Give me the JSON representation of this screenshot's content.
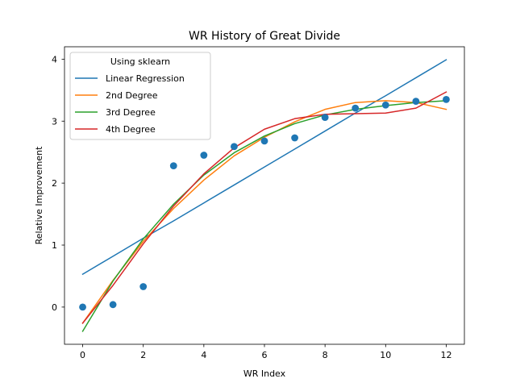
{
  "chart_data": {
    "type": "line",
    "title": "WR History of Great Divide",
    "xlabel": "WR Index",
    "ylabel": "Relative Improvement",
    "xlim": [
      -0.6,
      12.6
    ],
    "ylim": [
      -0.6,
      4.2
    ],
    "xticks": [
      0,
      2,
      4,
      6,
      8,
      10,
      12
    ],
    "yticks": [
      0,
      1,
      2,
      3,
      4
    ],
    "grid": false,
    "legend": {
      "title": "Using sklearn",
      "placement": "top-left"
    },
    "scatter": {
      "x": [
        0,
        1,
        2,
        3,
        4,
        5,
        6,
        7,
        8,
        9,
        10,
        11,
        12
      ],
      "y": [
        0.0,
        0.04,
        0.33,
        2.28,
        2.45,
        2.59,
        2.68,
        2.73,
        3.06,
        3.21,
        3.26,
        3.32,
        3.35
      ],
      "color": "#1f77b4"
    },
    "x": [
      0,
      1,
      2,
      3,
      4,
      5,
      6,
      7,
      8,
      9,
      10,
      11,
      12
    ],
    "series": [
      {
        "name": "Linear Regression",
        "color": "#1f77b4",
        "values": [
          0.53,
          0.82,
          1.11,
          1.39,
          1.68,
          1.97,
          2.26,
          2.55,
          2.84,
          3.13,
          3.41,
          3.7,
          3.99
        ]
      },
      {
        "name": "2nd Degree",
        "color": "#ff7f0e",
        "values": [
          -0.26,
          0.43,
          1.06,
          1.59,
          2.05,
          2.44,
          2.74,
          2.99,
          3.19,
          3.3,
          3.33,
          3.3,
          3.19
        ]
      },
      {
        "name": "3rd Degree",
        "color": "#2ca02c",
        "values": [
          -0.39,
          0.42,
          1.1,
          1.66,
          2.13,
          2.49,
          2.76,
          2.96,
          3.1,
          3.19,
          3.25,
          3.3,
          3.33
        ]
      },
      {
        "name": "4th Degree",
        "color": "#d62728",
        "values": [
          -0.26,
          0.35,
          1.02,
          1.63,
          2.15,
          2.57,
          2.87,
          3.04,
          3.11,
          3.12,
          3.13,
          3.21,
          3.47
        ]
      }
    ]
  }
}
